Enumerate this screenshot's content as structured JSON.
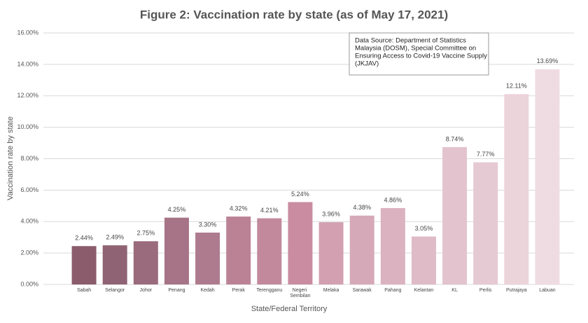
{
  "chart_data": {
    "type": "bar",
    "title": "Figure 2: Vaccination rate by state (as of May 17, 2021)",
    "x_label": "State/Federal Territory",
    "y_label": "Vaccination rate by state",
    "annotation": [
      "Data Source: Department of Statistics",
      "Malaysia (DOSM), Special Committee on",
      "Ensuring Access to Covid-19 Vaccine Supply",
      "(JKJAV)"
    ],
    "categories": [
      "Sabah",
      "Selangor",
      "Johor",
      "Penang",
      "Kedah",
      "Perak",
      "Terengganu",
      "Negeri Sembilan",
      "Melaka",
      "Sarawak",
      "Pahang",
      "Kelantan",
      "KL",
      "Perlis",
      "Putrajaya",
      "Labuan"
    ],
    "values": [
      2.44,
      2.49,
      2.75,
      4.25,
      3.3,
      4.32,
      4.21,
      5.24,
      3.96,
      4.38,
      4.86,
      3.05,
      8.74,
      7.77,
      12.11,
      13.69
    ],
    "value_labels": [
      "2.44%",
      "2.49%",
      "2.75%",
      "4.25%",
      "3.30%",
      "4.32%",
      "4.21%",
      "5.24%",
      "3.96%",
      "4.38%",
      "4.86%",
      "3.05%",
      "8.74%",
      "7.77%",
      "12.11%",
      "13.69%"
    ],
    "colors": [
      "#8a5c6c",
      "#906374",
      "#9a6b7c",
      "#a67486",
      "#ae7b8e",
      "#bb8295",
      "#c1899b",
      "#c98ca1",
      "#d2a0b1",
      "#d6a9b8",
      "#dbb2c0",
      "#dfbbc7",
      "#e3c3ce",
      "#e6cad3",
      "#ecd4db",
      "#efdce2"
    ],
    "ylim": [
      0,
      16
    ],
    "yticks": [
      {
        "value": 0,
        "label": "0.00%"
      },
      {
        "value": 2,
        "label": "2.00%"
      },
      {
        "value": 4,
        "label": "4.00%"
      },
      {
        "value": 6,
        "label": "6.00%"
      },
      {
        "value": 8,
        "label": "8.00%"
      },
      {
        "value": 10,
        "label": "10.00%"
      },
      {
        "value": 12,
        "label": "12.00%"
      },
      {
        "value": 14,
        "label": "14.00%"
      },
      {
        "value": 16,
        "label": "16.00%"
      }
    ],
    "grid": true
  }
}
